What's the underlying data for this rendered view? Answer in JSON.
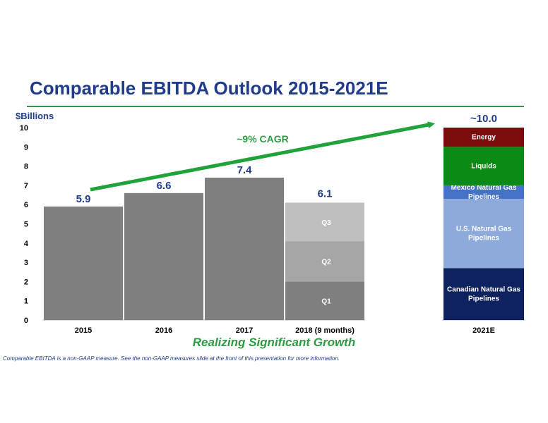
{
  "page": {
    "title": "Comparable EBITDA Outlook 2015-2021E",
    "tagline": "Realizing Significant Growth",
    "footnote": "Comparable EBITDA is a non-GAAP measure.  See the non-GAAP measures slide at the front of this presentation for more information."
  },
  "chart_data": {
    "type": "bar",
    "ylabel": "$Billions",
    "ylim": [
      0,
      10
    ],
    "yticks": [
      0,
      1,
      2,
      3,
      4,
      5,
      6,
      7,
      8,
      9,
      10
    ],
    "grid": false,
    "annotation": "~9% CAGR",
    "categories": [
      "2015",
      "2016",
      "2017",
      "2018 (9 months)",
      "2021E"
    ],
    "historical": [
      {
        "category": "2015",
        "value": 5.9,
        "label": "5.9"
      },
      {
        "category": "2016",
        "value": 6.6,
        "label": "6.6"
      },
      {
        "category": "2017",
        "value": 7.4,
        "label": "7.4"
      }
    ],
    "quarterly": {
      "category": "2018 (9 months)",
      "total": 6.1,
      "total_label": "6.1",
      "segments": [
        {
          "name": "Q1",
          "value": 2.0,
          "color": "#7f7f7f"
        },
        {
          "name": "Q2",
          "value": 2.1,
          "color": "#a6a6a6"
        },
        {
          "name": "Q3",
          "value": 2.0,
          "color": "#bfbfbf"
        }
      ]
    },
    "forecast": {
      "category": "2021E",
      "total": 10.0,
      "total_label": "~10.0",
      "segments": [
        {
          "name": "Canadian Natural Gas Pipelines",
          "value": 2.7,
          "color": "#0f2260"
        },
        {
          "name": "U.S. Natural Gas Pipelines",
          "value": 3.6,
          "color": "#8eaadb"
        },
        {
          "name": "Mexico Natural Gas Pipelines",
          "value": 0.7,
          "color": "#4472c4"
        },
        {
          "name": "Liquids",
          "value": 2.0,
          "color": "#0c8a16"
        },
        {
          "name": "Energy",
          "value": 1.0,
          "color": "#7b0c0c"
        }
      ]
    },
    "colors": {
      "bar": "#7f7f7f",
      "value_label": "#1f3d8a",
      "arrow": "#1fa33a",
      "title": "#1f3d8a"
    }
  }
}
